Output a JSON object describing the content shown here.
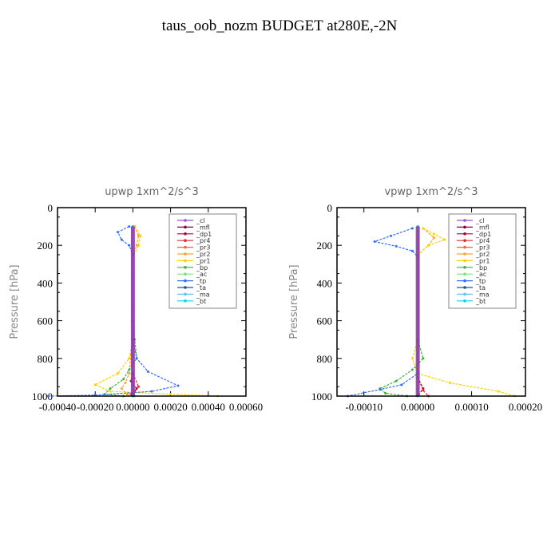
{
  "title": "taus_oob_nozm  BUDGET at280E,-2N",
  "chart_data": [
    {
      "type": "line",
      "title": "upwp   1xm^2/s^3",
      "ylabel": "Pressure [hPa]",
      "xlim": [
        -0.0004,
        0.0006
      ],
      "ylim": [
        1000,
        0
      ],
      "x_ticks": [
        "-0.00040",
        "-0.00020",
        "0.00000",
        "0.00020",
        "0.00040",
        "0.00060"
      ],
      "x_tick_values": [
        -0.0004,
        -0.0002,
        0.0,
        0.0002,
        0.0004,
        0.0006
      ],
      "y_ticks": [
        "0",
        "200",
        "400",
        "600",
        "800",
        "1000"
      ],
      "y_tick_values": [
        0,
        200,
        400,
        600,
        800,
        1000
      ],
      "legend_position": "top-right",
      "series": [
        {
          "name": "_cl",
          "color": "#a050c8",
          "points": [
            [
              0,
              100
            ],
            [
              0,
              1000
            ]
          ]
        },
        {
          "name": "_mfl",
          "color": "#800040",
          "points": [
            [
              0,
              100
            ],
            [
              0,
              1000
            ]
          ]
        },
        {
          "name": "_dp1",
          "color": "#b00030",
          "points": [
            [
              0,
              100
            ],
            [
              0,
              880
            ],
            [
              -1e-05,
              920
            ],
            [
              2e-05,
              960
            ],
            [
              0,
              1000
            ]
          ]
        },
        {
          "name": "_pr4",
          "color": "#e03030",
          "points": [
            [
              0,
              100
            ],
            [
              0,
              880
            ],
            [
              3e-05,
              950
            ],
            [
              -1e-05,
              990
            ]
          ]
        },
        {
          "name": "_pr3",
          "color": "#ff6040",
          "points": [
            [
              0,
              100
            ],
            [
              0,
              1000
            ]
          ]
        },
        {
          "name": "_pr2",
          "color": "#ffa030",
          "points": [
            [
              1e-05,
              100
            ],
            [
              3e-05,
              150
            ],
            [
              2e-05,
              200
            ],
            [
              0,
              250
            ],
            [
              0,
              700
            ],
            [
              -1e-05,
              780
            ],
            [
              -2e-05,
              880
            ],
            [
              -4e-05,
              930
            ],
            [
              -6e-05,
              960
            ],
            [
              -3e-05,
              990
            ],
            [
              1e-05,
              1000
            ]
          ]
        },
        {
          "name": "_pr1",
          "color": "#ffd000",
          "points": [
            [
              1e-05,
              100
            ],
            [
              4e-05,
              150
            ],
            [
              3e-05,
              200
            ],
            [
              0,
              260
            ],
            [
              0,
              700
            ],
            [
              -2e-05,
              800
            ],
            [
              -8e-05,
              880
            ],
            [
              -0.0002,
              940
            ],
            [
              -0.00012,
              975
            ],
            [
              0.0002,
              990
            ],
            [
              0.00045,
              1000
            ]
          ]
        },
        {
          "name": "_bp",
          "color": "#40b040",
          "points": [
            [
              0,
              100
            ],
            [
              0,
              600
            ],
            [
              1e-05,
              700
            ],
            [
              2e-05,
              800
            ],
            [
              -2e-05,
              860
            ],
            [
              -5e-05,
              910
            ],
            [
              -0.00012,
              960
            ],
            [
              -0.00015,
              990
            ],
            [
              -5e-05,
              1000
            ]
          ]
        },
        {
          "name": "_ac",
          "color": "#80e080",
          "points": [
            [
              0,
              100
            ],
            [
              0,
              900
            ],
            [
              1e-05,
              1000
            ]
          ]
        },
        {
          "name": "_tp",
          "color": "#3070ff",
          "points": [
            [
              -2e-05,
              100
            ],
            [
              -8e-05,
              130
            ],
            [
              -6e-05,
              170
            ],
            [
              -2e-05,
              200
            ],
            [
              0,
              250
            ],
            [
              0,
              700
            ],
            [
              2e-05,
              800
            ],
            [
              8e-05,
              870
            ],
            [
              0.00024,
              945
            ],
            [
              0.0001,
              975
            ],
            [
              -0.0002,
              995
            ],
            [
              -0.00045,
              1000
            ]
          ]
        },
        {
          "name": "_ta",
          "color": "#2050a0",
          "points": [
            [
              0,
              100
            ],
            [
              0,
              1000
            ]
          ]
        },
        {
          "name": "_ma",
          "color": "#60c0ff",
          "points": [
            [
              0,
              100
            ],
            [
              0,
              1000
            ]
          ]
        },
        {
          "name": "_bt",
          "color": "#00d8e0",
          "points": [
            [
              0,
              100
            ],
            [
              0,
              1000
            ]
          ]
        }
      ]
    },
    {
      "type": "line",
      "title": "vpwp   1xm^2/s^3",
      "ylabel": "Pressure [hPa]",
      "xlim": [
        -0.00015,
        0.0002
      ],
      "ylim": [
        1000,
        0
      ],
      "x_ticks": [
        "-0.00010",
        "0.00000",
        "0.00010",
        "0.00020"
      ],
      "x_tick_values": [
        -0.0001,
        0.0,
        0.0001,
        0.0002
      ],
      "y_ticks": [
        "0",
        "200",
        "400",
        "600",
        "800",
        "1000"
      ],
      "y_tick_values": [
        0,
        200,
        400,
        600,
        800,
        1000
      ],
      "legend_position": "top-right",
      "series": [
        {
          "name": "_cl",
          "color": "#a050c8",
          "points": [
            [
              0,
              100
            ],
            [
              0,
              1000
            ]
          ]
        },
        {
          "name": "_mfl",
          "color": "#800040",
          "points": [
            [
              0,
              100
            ],
            [
              0,
              1000
            ]
          ]
        },
        {
          "name": "_dp1",
          "color": "#b00030",
          "points": [
            [
              0,
              100
            ],
            [
              0,
              900
            ],
            [
              1e-05,
              960
            ],
            [
              0,
              1000
            ]
          ]
        },
        {
          "name": "_pr4",
          "color": "#e03030",
          "points": [
            [
              0,
              100
            ],
            [
              0,
              900
            ],
            [
              1e-05,
              970
            ],
            [
              2e-05,
              1000
            ]
          ]
        },
        {
          "name": "_pr3",
          "color": "#ff6040",
          "points": [
            [
              0,
              100
            ],
            [
              0,
              1000
            ]
          ]
        },
        {
          "name": "_pr2",
          "color": "#ffa030",
          "points": [
            [
              1e-05,
              110
            ],
            [
              3e-05,
              160
            ],
            [
              2e-05,
              200
            ],
            [
              0,
              250
            ],
            [
              0,
              1000
            ]
          ]
        },
        {
          "name": "_pr1",
          "color": "#ffd000",
          "points": [
            [
              1e-05,
              110
            ],
            [
              3e-05,
              140
            ],
            [
              5e-05,
              170
            ],
            [
              2e-05,
              200
            ],
            [
              0,
              250
            ],
            [
              0,
              700
            ],
            [
              -1e-05,
              800
            ],
            [
              0,
              880
            ],
            [
              6e-05,
              930
            ],
            [
              0.00015,
              975
            ],
            [
              0.00018,
              1000
            ]
          ]
        },
        {
          "name": "_bp",
          "color": "#40b040",
          "points": [
            [
              0,
              100
            ],
            [
              0,
              700
            ],
            [
              1e-05,
              800
            ],
            [
              -1e-05,
              860
            ],
            [
              -4e-05,
              920
            ],
            [
              -7e-05,
              960
            ],
            [
              -6e-05,
              985
            ],
            [
              -2e-05,
              1000
            ]
          ]
        },
        {
          "name": "_ac",
          "color": "#80e080",
          "points": [
            [
              0,
              100
            ],
            [
              0,
              1000
            ]
          ]
        },
        {
          "name": "_tp",
          "color": "#3070ff",
          "points": [
            [
              -1e-05,
              110
            ],
            [
              -5e-05,
              150
            ],
            [
              -8e-05,
              180
            ],
            [
              -4e-05,
              205
            ],
            [
              -1e-05,
              230
            ],
            [
              0,
              260
            ],
            [
              0,
              880
            ],
            [
              -3e-05,
              940
            ],
            [
              -7e-05,
              965
            ],
            [
              -0.00013,
              1000
            ]
          ]
        },
        {
          "name": "_ta",
          "color": "#2050a0",
          "points": [
            [
              0,
              100
            ],
            [
              0,
              1000
            ]
          ]
        },
        {
          "name": "_ma",
          "color": "#60c0ff",
          "points": [
            [
              0,
              100
            ],
            [
              0,
              1000
            ]
          ]
        },
        {
          "name": "_bt",
          "color": "#00d8e0",
          "points": [
            [
              0,
              100
            ],
            [
              0,
              1000
            ]
          ]
        }
      ]
    }
  ]
}
